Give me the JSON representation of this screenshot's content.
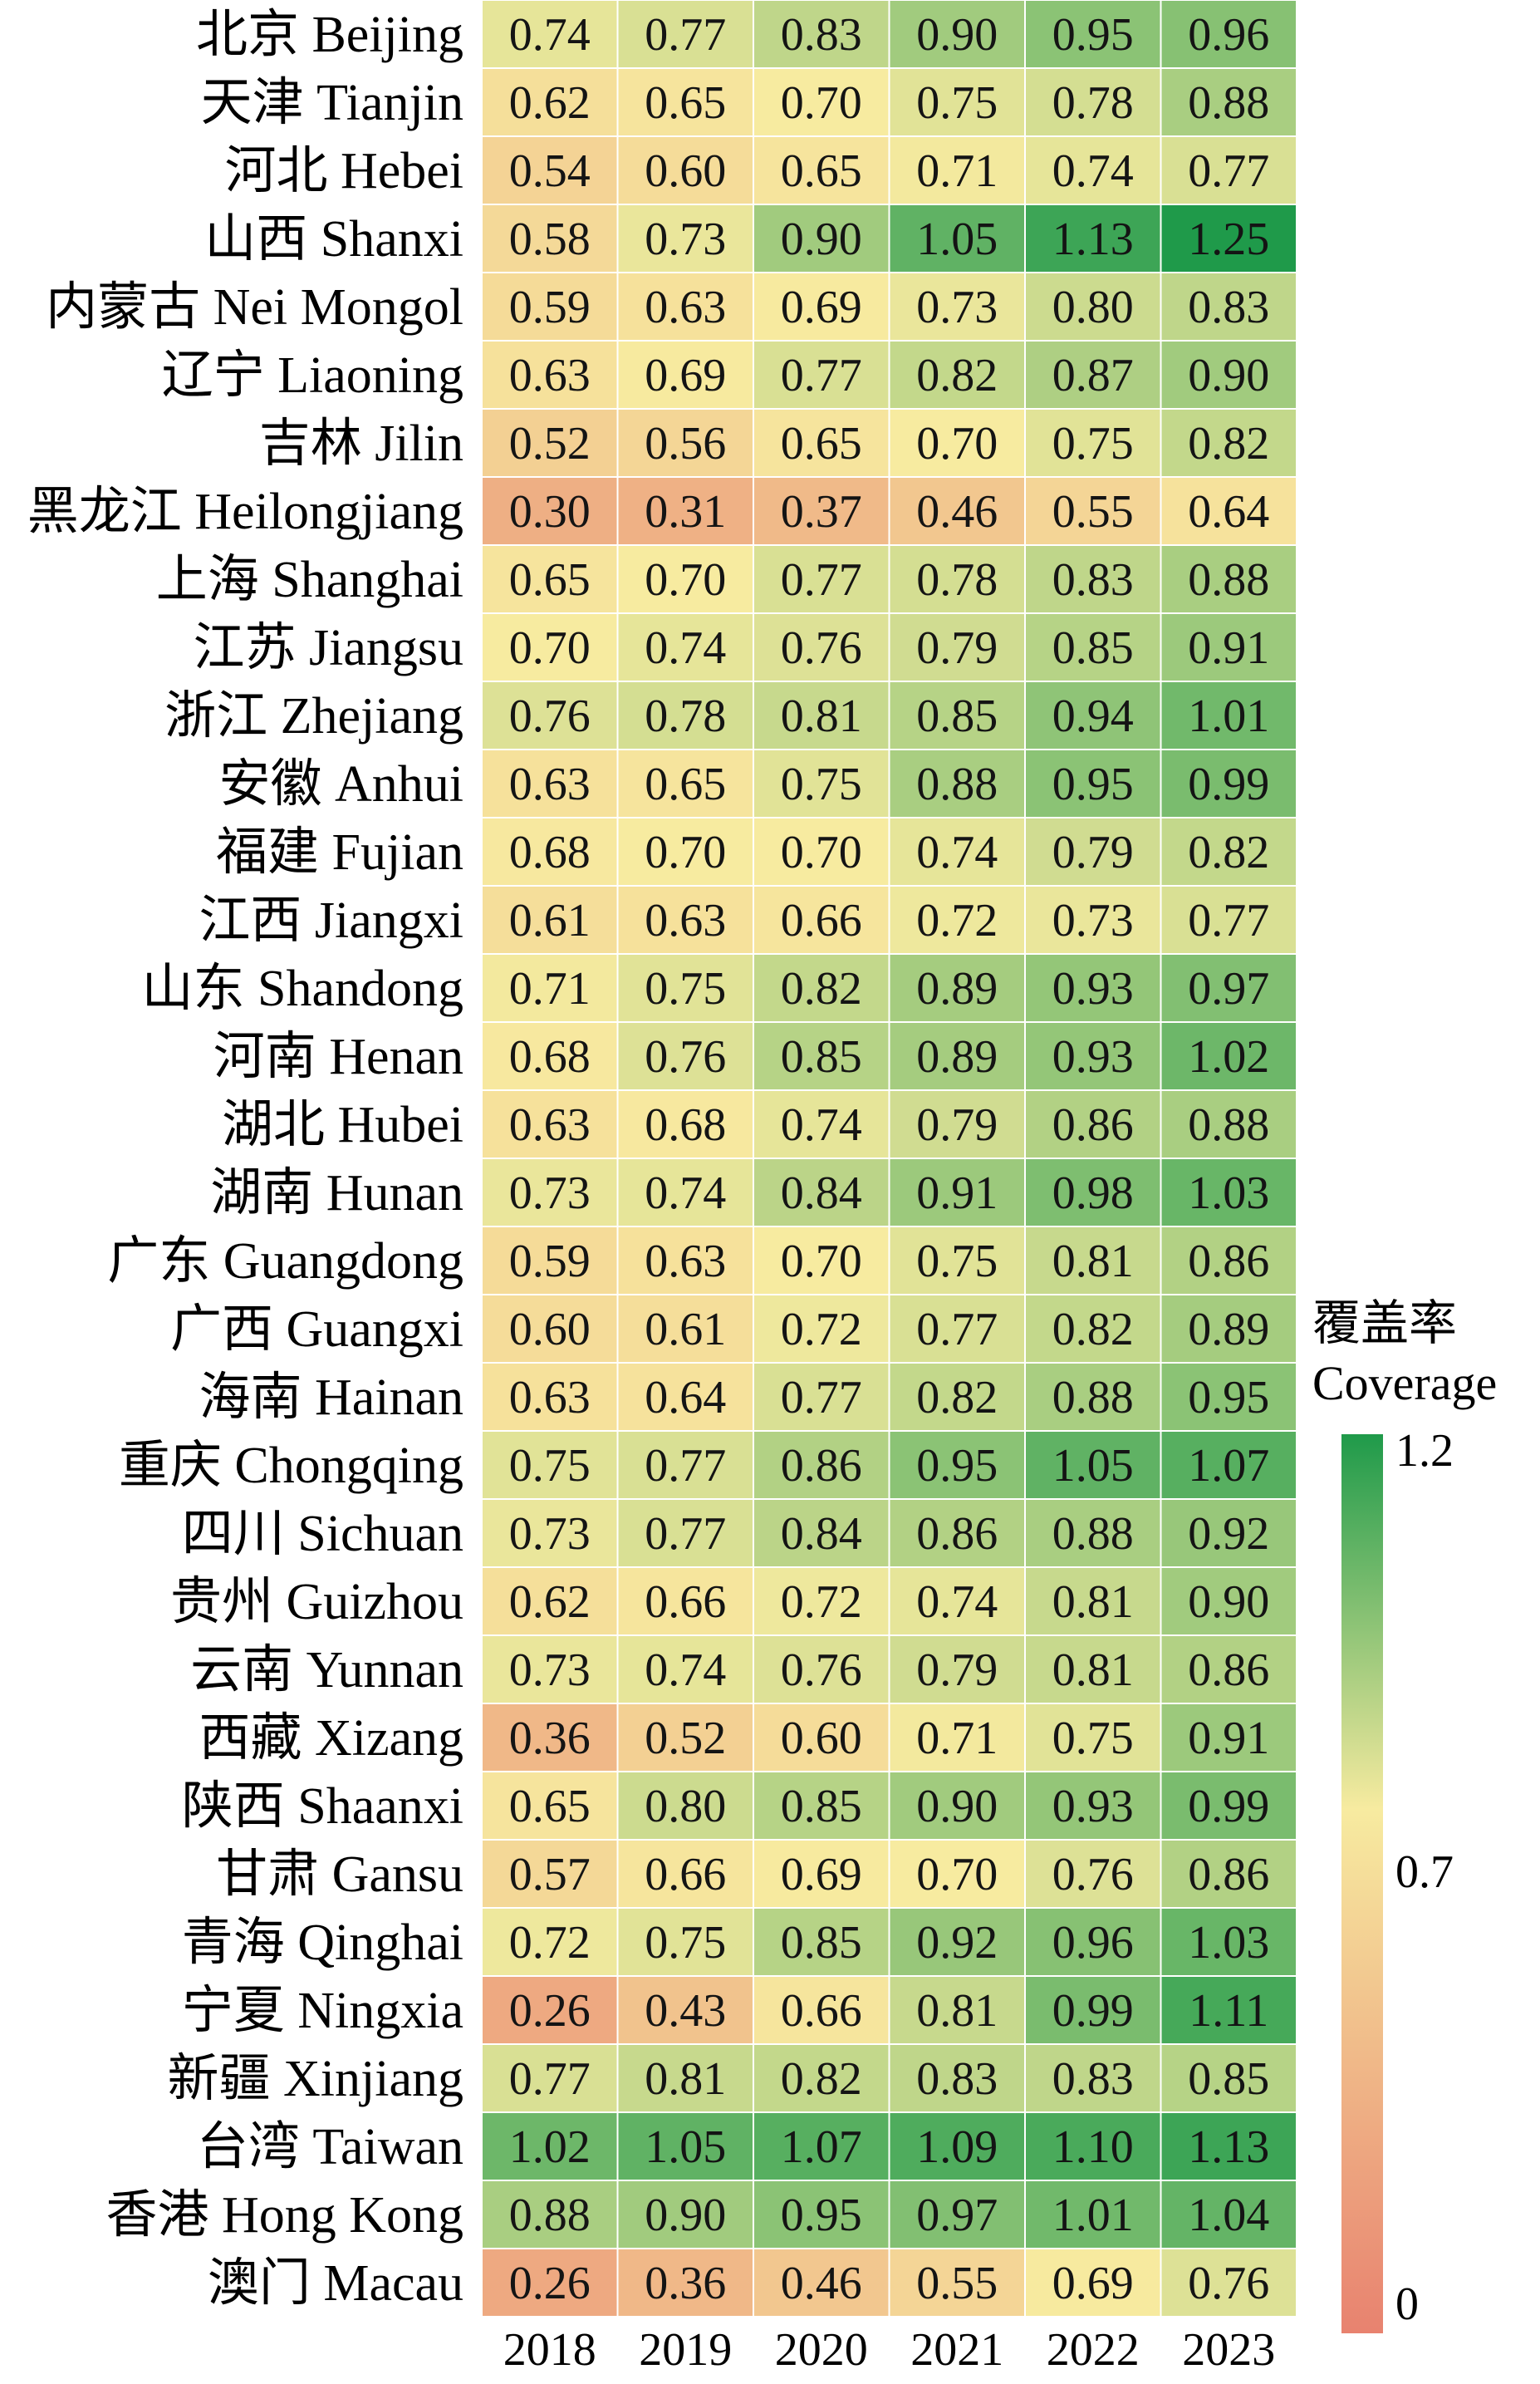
{
  "chart_data": {
    "type": "heatmap",
    "years": [
      "2018",
      "2019",
      "2020",
      "2021",
      "2022",
      "2023"
    ],
    "regions": [
      "北京 Beijing",
      "天津 Tianjin",
      "河北 Hebei",
      "山西 Shanxi",
      "内蒙古 Nei Mongol",
      "辽宁 Liaoning",
      "吉林 Jilin",
      "黑龙江 Heilongjiang",
      "上海 Shanghai",
      "江苏 Jiangsu",
      "浙江 Zhejiang",
      "安徽 Anhui",
      "福建 Fujian",
      "江西 Jiangxi",
      "山东 Shandong",
      "河南 Henan",
      "湖北 Hubei",
      "湖南 Hunan",
      "广东 Guangdong",
      "广西 Guangxi",
      "海南 Hainan",
      "重庆 Chongqing",
      "四川 Sichuan",
      "贵州 Guizhou",
      "云南 Yunnan",
      "西藏 Xizang",
      "陕西 Shaanxi",
      "甘肃 Gansu",
      "青海 Qinghai",
      "宁夏 Ningxia",
      "新疆 Xinjiang",
      "台湾 Taiwan",
      "香港 Hong Kong",
      "澳门 Macau"
    ],
    "values": [
      [
        0.74,
        0.77,
        0.83,
        0.9,
        0.95,
        0.96
      ],
      [
        0.62,
        0.65,
        0.7,
        0.75,
        0.78,
        0.88
      ],
      [
        0.54,
        0.6,
        0.65,
        0.71,
        0.74,
        0.77
      ],
      [
        0.58,
        0.73,
        0.9,
        1.05,
        1.13,
        1.25
      ],
      [
        0.59,
        0.63,
        0.69,
        0.73,
        0.8,
        0.83
      ],
      [
        0.63,
        0.69,
        0.77,
        0.82,
        0.87,
        0.9
      ],
      [
        0.52,
        0.56,
        0.65,
        0.7,
        0.75,
        0.82
      ],
      [
        0.3,
        0.31,
        0.37,
        0.46,
        0.55,
        0.64
      ],
      [
        0.65,
        0.7,
        0.77,
        0.78,
        0.83,
        0.88
      ],
      [
        0.7,
        0.74,
        0.76,
        0.79,
        0.85,
        0.91
      ],
      [
        0.76,
        0.78,
        0.81,
        0.85,
        0.94,
        1.01
      ],
      [
        0.63,
        0.65,
        0.75,
        0.88,
        0.95,
        0.99
      ],
      [
        0.68,
        0.7,
        0.7,
        0.74,
        0.79,
        0.82
      ],
      [
        0.61,
        0.63,
        0.66,
        0.72,
        0.73,
        0.77
      ],
      [
        0.71,
        0.75,
        0.82,
        0.89,
        0.93,
        0.97
      ],
      [
        0.68,
        0.76,
        0.85,
        0.89,
        0.93,
        1.02
      ],
      [
        0.63,
        0.68,
        0.74,
        0.79,
        0.86,
        0.88
      ],
      [
        0.73,
        0.74,
        0.84,
        0.91,
        0.98,
        1.03
      ],
      [
        0.59,
        0.63,
        0.7,
        0.75,
        0.81,
        0.86
      ],
      [
        0.6,
        0.61,
        0.72,
        0.77,
        0.82,
        0.89
      ],
      [
        0.63,
        0.64,
        0.77,
        0.82,
        0.88,
        0.95
      ],
      [
        0.75,
        0.77,
        0.86,
        0.95,
        1.05,
        1.07
      ],
      [
        0.73,
        0.77,
        0.84,
        0.86,
        0.88,
        0.92
      ],
      [
        0.62,
        0.66,
        0.72,
        0.74,
        0.81,
        0.9
      ],
      [
        0.73,
        0.74,
        0.76,
        0.79,
        0.81,
        0.86
      ],
      [
        0.36,
        0.52,
        0.6,
        0.71,
        0.75,
        0.91
      ],
      [
        0.65,
        0.8,
        0.85,
        0.9,
        0.93,
        0.99
      ],
      [
        0.57,
        0.66,
        0.69,
        0.7,
        0.76,
        0.86
      ],
      [
        0.72,
        0.75,
        0.85,
        0.92,
        0.96,
        1.03
      ],
      [
        0.26,
        0.43,
        0.66,
        0.81,
        0.99,
        1.11
      ],
      [
        0.77,
        0.81,
        0.82,
        0.83,
        0.83,
        0.85
      ],
      [
        1.02,
        1.05,
        1.07,
        1.09,
        1.1,
        1.13
      ],
      [
        0.88,
        0.9,
        0.95,
        0.97,
        1.01,
        1.04
      ],
      [
        0.26,
        0.36,
        0.46,
        0.55,
        0.69,
        0.76
      ]
    ],
    "colorbar": {
      "title_zh": "覆盖率",
      "title_en": "Coverage",
      "min": 0,
      "mid": 0.7,
      "max": 1.2,
      "tick_labels": [
        "1.2",
        "0.7",
        "0"
      ],
      "colors": {
        "low": "#e8826f",
        "mid": "#f7eba0",
        "high": "#1f9a4a"
      }
    }
  }
}
